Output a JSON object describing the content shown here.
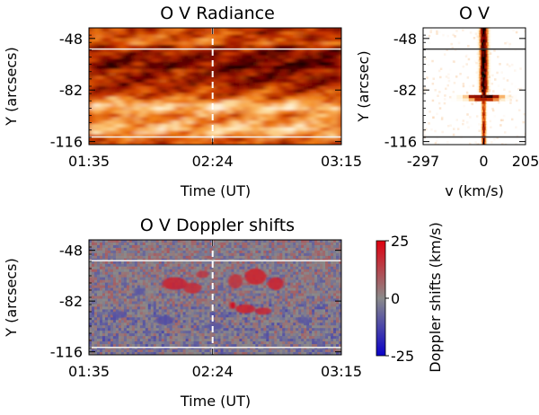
{
  "chart_data": [
    {
      "type": "heatmap",
      "title": "O V Radiance",
      "xlabel": "Time (UT)",
      "ylabel": "Y (arcsecs)",
      "x_ticks": [
        "01:35",
        "02:24",
        "03:15"
      ],
      "y_ticks": [
        "-48",
        "-82",
        "-116"
      ],
      "xlim": [
        "01:35",
        "03:15"
      ],
      "ylim": [
        -118,
        -41
      ],
      "colormap": "hot",
      "colors": [
        "#000000",
        "#7a0000",
        "#d03a00",
        "#f58a1a",
        "#fde0a0",
        "#ffffff"
      ],
      "hlines_y": [
        -55,
        -113
      ],
      "vline_time": "02:24",
      "vline_style": "dashed white",
      "hline_color": "#f2f2f2"
    },
    {
      "type": "heatmap",
      "title": "O V",
      "xlabel": "v (km/s)",
      "ylabel": "Y (arcsec)",
      "x_ticks": [
        "-297",
        "0",
        "205"
      ],
      "y_ticks": [
        "-48",
        "-82",
        "-116"
      ],
      "xlim": [
        -297,
        205
      ],
      "ylim": [
        -118,
        -41
      ],
      "colormap": "hot (inverted)",
      "line_center_v": 0,
      "hlines_y": [
        -55,
        -113
      ],
      "hline_color": "#333333"
    },
    {
      "type": "heatmap",
      "title": "O V Doppler shifts",
      "xlabel": "Time (UT)",
      "ylabel": "Y (arcsecs)",
      "x_ticks": [
        "01:35",
        "02:24",
        "03:15"
      ],
      "y_ticks": [
        "-48",
        "-82",
        "-116"
      ],
      "xlim": [
        "01:35",
        "03:15"
      ],
      "ylim": [
        -118,
        -41
      ],
      "colormap": "blue-gray-red",
      "colors": [
        "#0a00c8",
        "#8a8a8a",
        "#e00010"
      ],
      "hlines_y": [
        -55,
        -113
      ],
      "vline_time": "02:24",
      "colorbar": {
        "label": "Doppler shifts (km/s)",
        "ticks": [
          "25",
          "0",
          "-25"
        ],
        "range": [
          -25,
          25
        ]
      }
    }
  ]
}
